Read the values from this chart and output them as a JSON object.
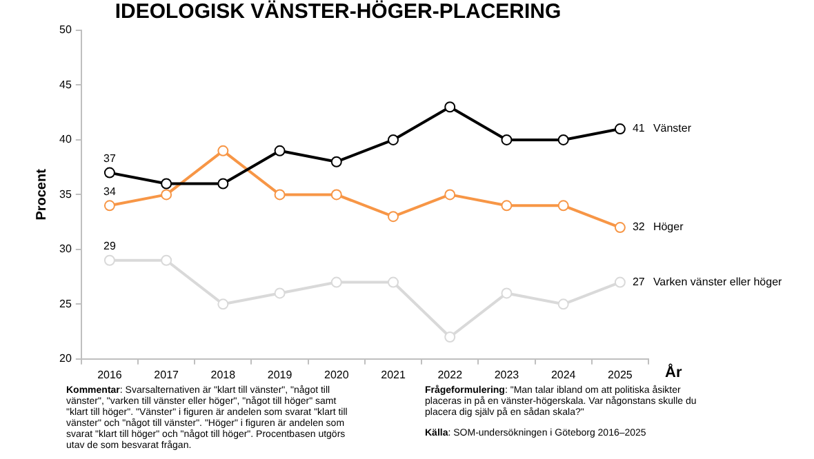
{
  "chart_data": {
    "type": "line",
    "title": "IDEOLOGISK VÄNSTER-HÖGER-PLACERING",
    "xlabel": "År",
    "ylabel": "Procent",
    "categories": [
      "2016",
      "2017",
      "2018",
      "2019",
      "2020",
      "2021",
      "2022",
      "2023",
      "2024",
      "2025"
    ],
    "series": [
      {
        "name": "Vänster",
        "color": "#000000",
        "values": [
          37,
          36,
          36,
          39,
          38,
          40,
          43,
          40,
          40,
          41
        ],
        "value_labels": [
          "37",
          null,
          null,
          null,
          null,
          null,
          null,
          null,
          null,
          "41"
        ]
      },
      {
        "name": "Höger",
        "color": "#f79646",
        "values": [
          34,
          35,
          39,
          35,
          35,
          33,
          35,
          34,
          34,
          32
        ],
        "value_labels": [
          "34",
          null,
          null,
          null,
          null,
          null,
          null,
          null,
          null,
          "32"
        ]
      },
      {
        "name": "Varken vänster eller höger",
        "color": "#d9d9d9",
        "values": [
          29,
          29,
          25,
          26,
          27,
          27,
          22,
          26,
          25,
          27
        ],
        "value_labels": [
          "29",
          null,
          null,
          null,
          null,
          null,
          null,
          null,
          null,
          "27"
        ]
      }
    ],
    "ylim": [
      20,
      50
    ],
    "yticks": [
      20,
      25,
      30,
      35,
      40,
      45,
      50
    ],
    "grid": false,
    "legend": false,
    "marker": "circle",
    "line_style": "solid",
    "annotations": [
      "Kommentar: Svarsalternativen är \"klart till vänster\", \"något till vänster\", \"varken till vänster eller höger\", \"något till höger\" samt \"klart till höger\". \"Vänster\" i figuren är andelen som svarat \"klart till vänster\" och \"något till vänster\". \"Höger\" i figuren är andelen som svarat \"klart till höger\" och \"något till höger\". Procentbasen utgörs utav de som besvarat frågan.",
      "Frågeformulering: \"Man talar ibland om att politiska åsikter placeras in på en vänster-högerskala. Var någonstans skulle du placera dig själv på en sådan skala?\"",
      "Källa: SOM-undersökningen i Göteborg 2016–2025"
    ]
  }
}
